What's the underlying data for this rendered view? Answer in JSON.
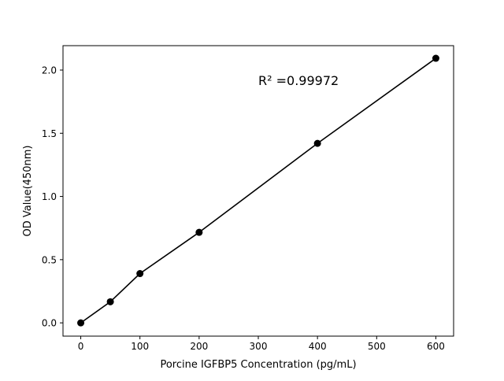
{
  "chart_data": {
    "type": "line",
    "title": "",
    "xlabel": "Porcine IGFBP5 Concentration (pg/mL)",
    "ylabel": "OD Value(450nm)",
    "x": [
      0,
      50,
      100,
      200,
      400,
      600
    ],
    "series": [
      {
        "values": [
          0.0,
          0.167,
          0.39,
          0.716,
          1.42,
          2.093
        ],
        "color": "#000000",
        "marker": "circle"
      }
    ],
    "xlim": [
      -30,
      630
    ],
    "ylim": [
      -0.105,
      2.193
    ],
    "xticks": [
      0,
      100,
      200,
      300,
      400,
      500,
      600
    ],
    "xtick_labels": [
      "0",
      "100",
      "200",
      "300",
      "400",
      "500",
      "600"
    ],
    "yticks": [
      0.0,
      0.5,
      1.0,
      1.5,
      2.0
    ],
    "ytick_labels": [
      "0.0",
      "0.5",
      "1.0",
      "1.5",
      "2.0"
    ],
    "annotation": "R² =0.99972",
    "grid": false,
    "legend": "none"
  }
}
